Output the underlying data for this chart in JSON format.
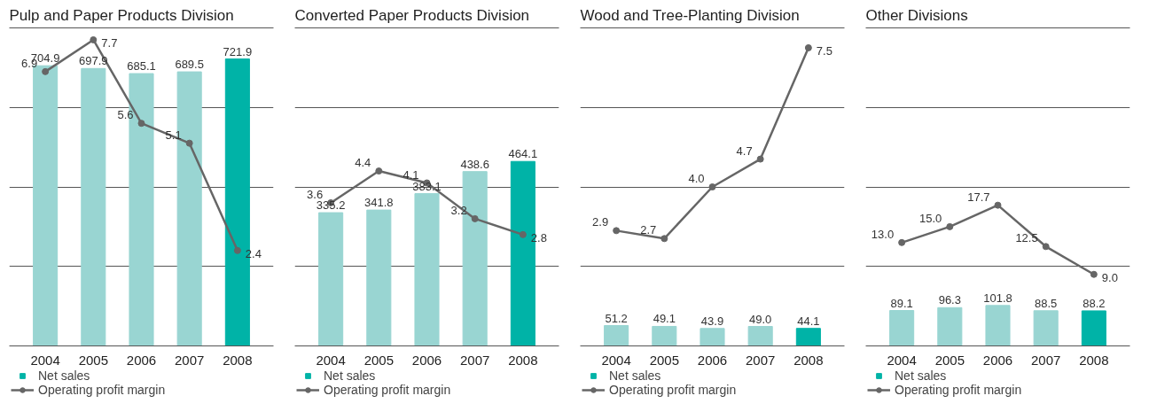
{
  "chart_data": [
    {
      "type": "bar",
      "title": "Pulp and Paper Products Division",
      "categories": [
        "2004",
        "2005",
        "2006",
        "2007",
        "2008"
      ],
      "ylim": [
        0,
        800
      ],
      "yticks": [
        {
          "value": 0,
          "label": null
        },
        {
          "value": 200,
          "label": null
        },
        {
          "value": 400,
          "label": null
        },
        {
          "value": 600,
          "label": null
        },
        {
          "value": 800,
          "label": null
        }
      ],
      "y2lim": [
        0,
        8
      ],
      "tick_labels": "x",
      "grid": "y",
      "legend": "bottom",
      "marker": "circle",
      "series": [
        {
          "name": "Net sales",
          "colors": [
            "#99d5d2",
            "#99d5d2",
            "#99d5d2",
            "#99d5d2",
            "#00b3a7"
          ],
          "values": [
            704.9,
            697.9,
            685.1,
            689.5,
            721.9
          ],
          "value_labels": [
            "704.9",
            "697.9",
            "685.1",
            "689.5",
            "721.9"
          ]
        },
        {
          "name": "Operating profit margin",
          "type": "line",
          "axis": "y2",
          "color": "#666666",
          "values": [
            6.9,
            7.7,
            5.6,
            5.1,
            2.4
          ],
          "value_labels": [
            "6.9",
            "7.7",
            "5.6",
            "5.1",
            "2.4"
          ]
        }
      ]
    },
    {
      "type": "bar",
      "title": "Converted Paper Products Division",
      "categories": [
        "2004",
        "2005",
        "2006",
        "2007",
        "2008"
      ],
      "ylim": [
        0,
        800
      ],
      "yticks": [
        {
          "value": 0,
          "label": null
        },
        {
          "value": 200,
          "label": null
        },
        {
          "value": 400,
          "label": null
        },
        {
          "value": 600,
          "label": null
        },
        {
          "value": 800,
          "label": null
        }
      ],
      "y2lim": [
        0,
        8
      ],
      "tick_labels": "x",
      "grid": "y",
      "legend": "bottom",
      "marker": "circle",
      "series": [
        {
          "name": "Net sales",
          "colors": [
            "#99d5d2",
            "#99d5d2",
            "#99d5d2",
            "#99d5d2",
            "#00b3a7"
          ],
          "values": [
            335.2,
            341.8,
            383.1,
            438.6,
            464.1
          ],
          "value_labels": [
            "335.2",
            "341.8",
            "383.1",
            "438.6",
            "464.1"
          ]
        },
        {
          "name": "Operating profit margin",
          "type": "line",
          "axis": "y2",
          "color": "#666666",
          "values": [
            3.6,
            4.4,
            4.1,
            3.2,
            2.8
          ],
          "value_labels": [
            "3.6",
            "4.4",
            "4.1",
            "3.2",
            "2.8"
          ]
        }
      ]
    },
    {
      "type": "bar",
      "title": "Wood and Tree-Planting Division",
      "categories": [
        "2004",
        "2005",
        "2006",
        "2007",
        "2008"
      ],
      "ylim": [
        0,
        800
      ],
      "yticks": [
        {
          "value": 0,
          "label": null
        },
        {
          "value": 200,
          "label": null
        },
        {
          "value": 400,
          "label": null
        },
        {
          "value": 600,
          "label": null
        },
        {
          "value": 800,
          "label": null
        }
      ],
      "y2lim": [
        0,
        8
      ],
      "tick_labels": "x",
      "grid": "y",
      "legend": "bottom",
      "marker": "circle",
      "series": [
        {
          "name": "Net sales",
          "colors": [
            "#99d5d2",
            "#99d5d2",
            "#99d5d2",
            "#99d5d2",
            "#00b3a7"
          ],
          "values": [
            51.2,
            49.1,
            43.9,
            49.0,
            44.1
          ],
          "value_labels": [
            "51.2",
            "49.1",
            "43.9",
            "49.0",
            "44.1"
          ]
        },
        {
          "name": "Operating profit margin",
          "type": "line",
          "axis": "y2",
          "color": "#666666",
          "values": [
            2.9,
            2.7,
            4.0,
            4.7,
            7.5
          ],
          "value_labels": [
            "2.9",
            "2.7",
            "4.0",
            "4.7",
            "7.5"
          ]
        }
      ]
    },
    {
      "type": "bar",
      "title": "Other Divisions",
      "categories": [
        "2004",
        "2005",
        "2006",
        "2007",
        "2008"
      ],
      "ylim": [
        0,
        800
      ],
      "yticks": [
        {
          "value": 0,
          "label": null
        },
        {
          "value": 200,
          "label": null
        },
        {
          "value": 400,
          "label": null
        },
        {
          "value": 600,
          "label": null
        },
        {
          "value": 800,
          "label": null
        }
      ],
      "y2lim": [
        0,
        40
      ],
      "tick_labels": "x",
      "grid": "y",
      "legend": "bottom",
      "marker": "circle",
      "series": [
        {
          "name": "Net sales",
          "colors": [
            "#99d5d2",
            "#99d5d2",
            "#99d5d2",
            "#99d5d2",
            "#00b3a7"
          ],
          "values": [
            89.1,
            96.3,
            101.8,
            88.5,
            88.2
          ],
          "value_labels": [
            "89.1",
            "96.3",
            "101.8",
            "88.5",
            "88.2"
          ]
        },
        {
          "name": "Operating profit margin",
          "type": "line",
          "axis": "y2",
          "color": "#666666",
          "values": [
            13.0,
            15.0,
            17.7,
            12.5,
            9.0
          ],
          "value_labels": [
            "13.0",
            "15.0",
            "17.7",
            "12.5",
            "9.0"
          ]
        }
      ]
    }
  ]
}
